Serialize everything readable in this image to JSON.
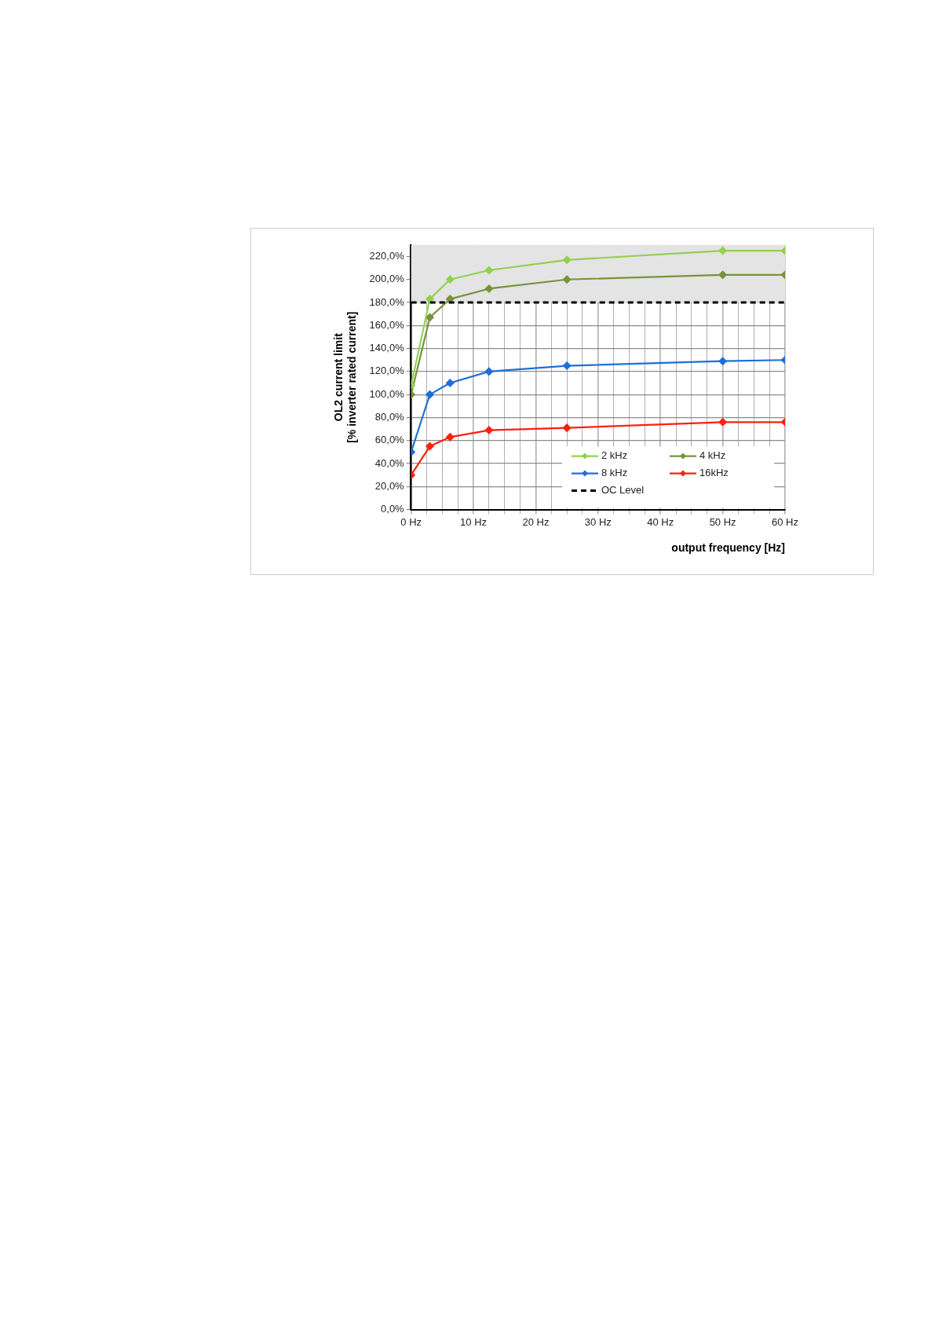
{
  "chart_data": {
    "type": "line",
    "xlabel": "output frequency [Hz]",
    "ylabel": "OL2 current limit\n[% inverter rated current]",
    "x": [
      0,
      3,
      6.25,
      12.5,
      25,
      50,
      60
    ],
    "series": [
      {
        "name": "2 kHz",
        "color": "#92d050",
        "values": [
          108,
          183,
          200,
          208,
          217,
          225,
          225
        ]
      },
      {
        "name": "4 kHz",
        "color": "#77933c",
        "values": [
          100,
          167,
          183,
          192,
          200,
          204,
          204
        ]
      },
      {
        "name": "8 kHz",
        "color": "#1f6fd6",
        "values": [
          50,
          100,
          110,
          120,
          125,
          129,
          130
        ]
      },
      {
        "name": "16kHz",
        "color": "#ff2010",
        "values": [
          30,
          55,
          63,
          69,
          71,
          76,
          76
        ]
      }
    ],
    "ref_lines": [
      {
        "axis": "y",
        "value": 180,
        "label": "OC Level",
        "color": "#000000",
        "line_style": "dashed"
      }
    ],
    "bands": [
      {
        "axis": "y",
        "from": 180,
        "to": 230,
        "color": "#e4e4e4"
      }
    ],
    "xlim": [
      0,
      60
    ],
    "xticks": [
      {
        "value": 0,
        "label": "0 Hz"
      },
      {
        "value": 2.5,
        "label": null
      },
      {
        "value": 5,
        "label": null
      },
      {
        "value": 7.5,
        "label": null
      },
      {
        "value": 10,
        "label": "10 Hz"
      },
      {
        "value": 12.5,
        "label": null
      },
      {
        "value": 15,
        "label": null
      },
      {
        "value": 17.5,
        "label": null
      },
      {
        "value": 20,
        "label": "20 Hz"
      },
      {
        "value": 22.5,
        "label": null
      },
      {
        "value": 25,
        "label": null
      },
      {
        "value": 27.5,
        "label": null
      },
      {
        "value": 30,
        "label": "30 Hz"
      },
      {
        "value": 32.5,
        "label": null
      },
      {
        "value": 35,
        "label": null
      },
      {
        "value": 37.5,
        "label": null
      },
      {
        "value": 40,
        "label": "40 Hz"
      },
      {
        "value": 42.5,
        "label": null
      },
      {
        "value": 45,
        "label": null
      },
      {
        "value": 47.5,
        "label": null
      },
      {
        "value": 50,
        "label": "50 Hz"
      },
      {
        "value": 52.5,
        "label": null
      },
      {
        "value": 55,
        "label": null
      },
      {
        "value": 57.5,
        "label": null
      },
      {
        "value": 60,
        "label": "60 Hz"
      }
    ],
    "ylim": [
      0,
      230
    ],
    "yticks": [
      {
        "value": 0,
        "label": "0,0%"
      },
      {
        "value": 20,
        "label": "20,0%"
      },
      {
        "value": 40,
        "label": "40,0%"
      },
      {
        "value": 60,
        "label": "60,0%"
      },
      {
        "value": 80,
        "label": "80,0%"
      },
      {
        "value": 100,
        "label": "100,0%"
      },
      {
        "value": 120,
        "label": "120,0%"
      },
      {
        "value": 140,
        "label": "140,0%"
      },
      {
        "value": 160,
        "label": "160,0%"
      },
      {
        "value": 180,
        "label": "180,0%"
      },
      {
        "value": 200,
        "label": "200,0%"
      },
      {
        "value": 220,
        "label": "220,0%"
      }
    ],
    "grid": true,
    "legend": "bottom right",
    "marker": "diamond",
    "line_style": "solid"
  }
}
